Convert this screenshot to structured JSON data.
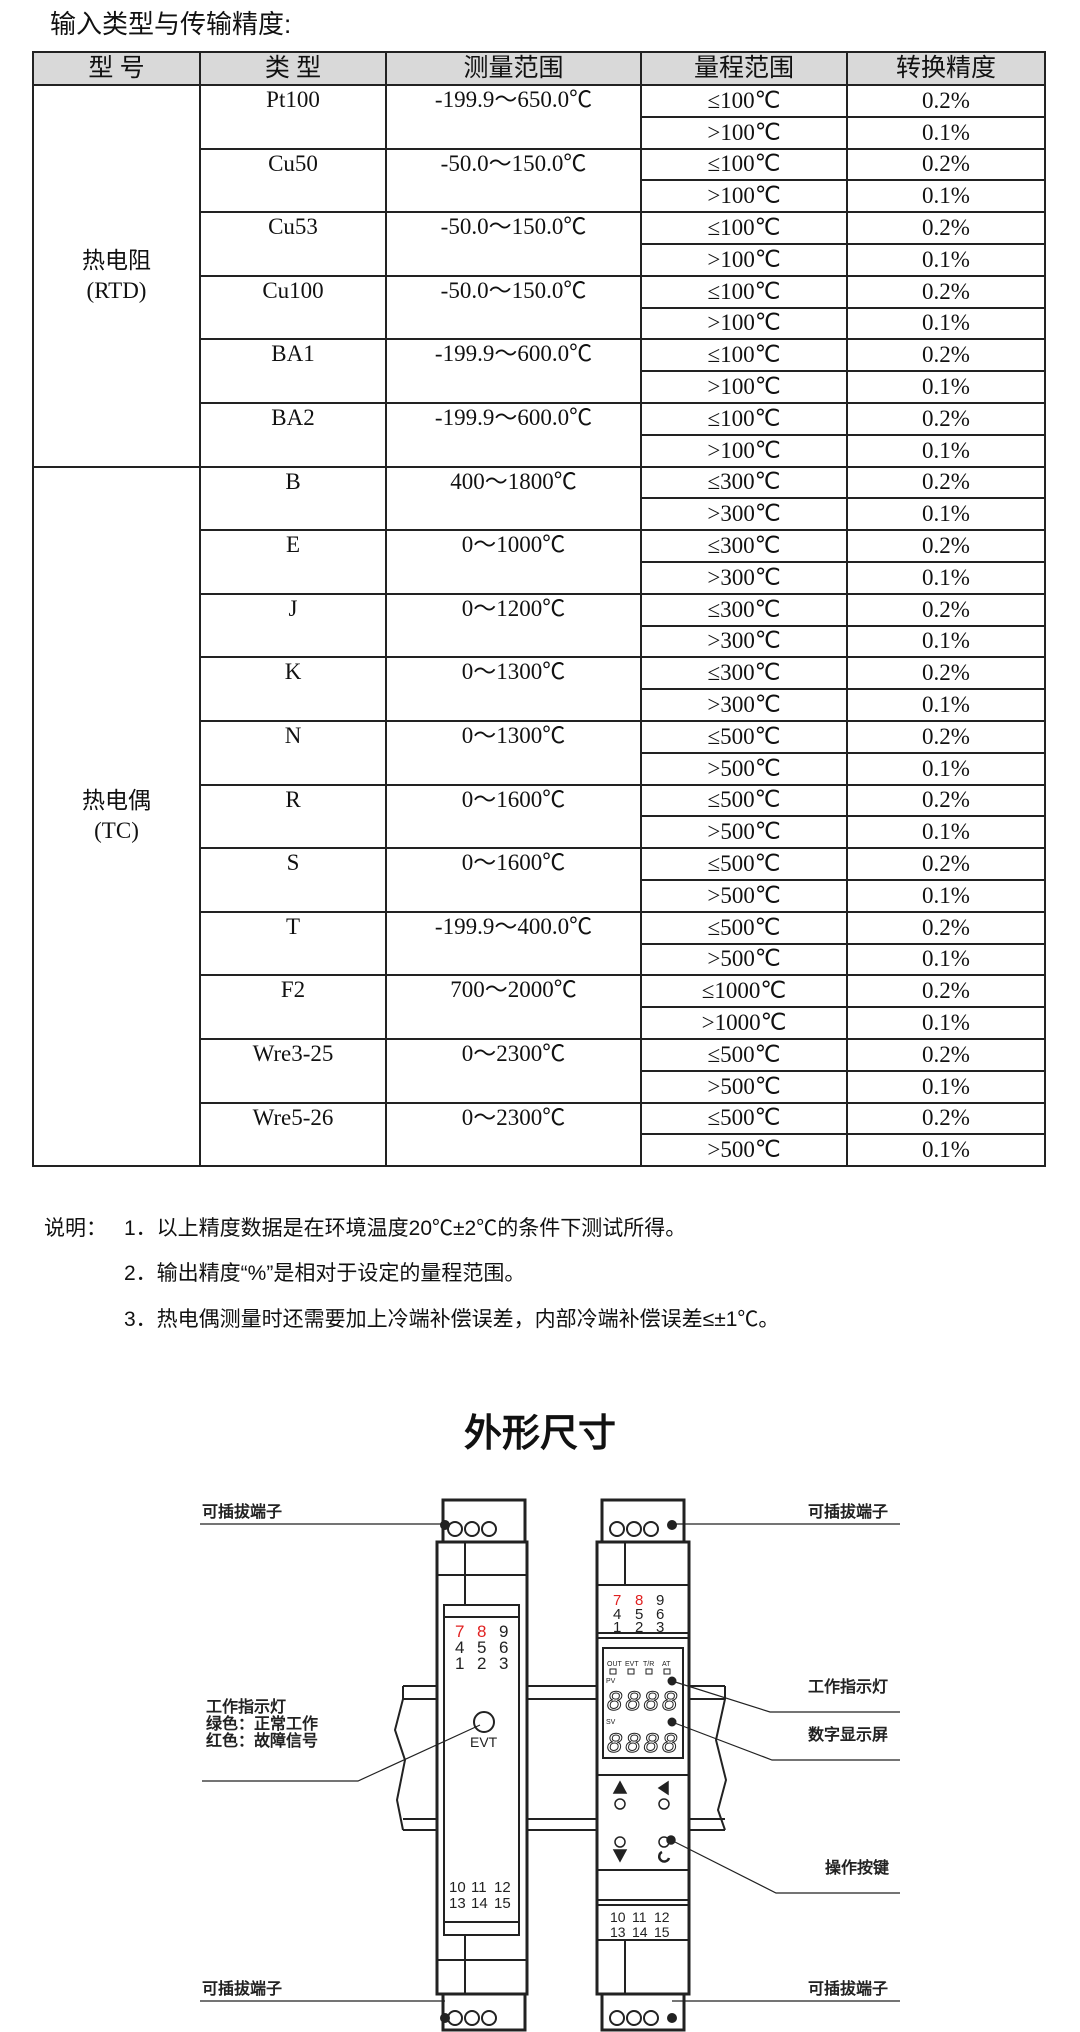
{
  "section_title": "输入类型与传输精度:",
  "table": {
    "headers": [
      "型 号",
      "类 型",
      "测量范围",
      "量程范围",
      "转换精度"
    ],
    "categories": [
      {
        "label": "热电阻",
        "sub": "(RTD)",
        "types": [
          {
            "type": "Pt100",
            "range": "-199.9～650.0℃",
            "spans": [
              "≤100℃",
              ">100℃"
            ],
            "acc": [
              "0.2%",
              "0.1%"
            ]
          },
          {
            "type": "Cu50",
            "range": "-50.0～150.0℃",
            "spans": [
              "≤100℃",
              ">100℃"
            ],
            "acc": [
              "0.2%",
              "0.1%"
            ]
          },
          {
            "type": "Cu53",
            "range": "-50.0～150.0℃",
            "spans": [
              "≤100℃",
              ">100℃"
            ],
            "acc": [
              "0.2%",
              "0.1%"
            ]
          },
          {
            "type": "Cu100",
            "range": "-50.0～150.0℃",
            "spans": [
              "≤100℃",
              ">100℃"
            ],
            "acc": [
              "0.2%",
              "0.1%"
            ]
          },
          {
            "type": "BA1",
            "range": "-199.9～600.0℃",
            "spans": [
              "≤100℃",
              ">100℃"
            ],
            "acc": [
              "0.2%",
              "0.1%"
            ]
          },
          {
            "type": "BA2",
            "range": "-199.9～600.0℃",
            "spans": [
              "≤100℃",
              ">100℃"
            ],
            "acc": [
              "0.2%",
              "0.1%"
            ]
          }
        ]
      },
      {
        "label": "热电偶",
        "sub": "(TC)",
        "types": [
          {
            "type": "B",
            "range": "400～1800℃",
            "spans": [
              "≤300℃",
              ">300℃"
            ],
            "acc": [
              "0.2%",
              "0.1%"
            ]
          },
          {
            "type": "E",
            "range": "0～1000℃",
            "spans": [
              "≤300℃",
              ">300℃"
            ],
            "acc": [
              "0.2%",
              "0.1%"
            ]
          },
          {
            "type": "J",
            "range": "0～1200℃",
            "spans": [
              "≤300℃",
              ">300℃"
            ],
            "acc": [
              "0.2%",
              "0.1%"
            ]
          },
          {
            "type": "K",
            "range": "0～1300℃",
            "spans": [
              "≤300℃",
              ">300℃"
            ],
            "acc": [
              "0.2%",
              "0.1%"
            ]
          },
          {
            "type": "N",
            "range": "0～1300℃",
            "spans": [
              "≤500℃",
              ">500℃"
            ],
            "acc": [
              "0.2%",
              "0.1%"
            ]
          },
          {
            "type": "R",
            "range": "0～1600℃",
            "spans": [
              "≤500℃",
              ">500℃"
            ],
            "acc": [
              "0.2%",
              "0.1%"
            ]
          },
          {
            "type": "S",
            "range": "0～1600℃",
            "spans": [
              "≤500℃",
              ">500℃"
            ],
            "acc": [
              "0.2%",
              "0.1%"
            ]
          },
          {
            "type": "T",
            "range": "-199.9～400.0℃",
            "spans": [
              "≤500℃",
              ">500℃"
            ],
            "acc": [
              "0.2%",
              "0.1%"
            ]
          },
          {
            "type": "F2",
            "range": "700～2000℃",
            "spans": [
              "≤1000℃",
              ">1000℃"
            ],
            "acc": [
              "0.2%",
              "0.1%"
            ]
          },
          {
            "type": "Wre3-25",
            "range": "0～2300℃",
            "spans": [
              "≤500℃",
              ">500℃"
            ],
            "acc": [
              "0.2%",
              "0.1%"
            ]
          },
          {
            "type": "Wre5-26",
            "range": "0～2300℃",
            "spans": [
              "≤500℃",
              ">500℃"
            ],
            "acc": [
              "0.2%",
              "0.1%"
            ]
          }
        ]
      }
    ]
  },
  "notes": {
    "prefix": "说明：",
    "items": [
      "1．以上精度数据是在环境温度20℃±2℃的条件下测试所得。",
      "2．输出精度“%”是相对于设定的量程范围。",
      "3．热电偶测量时还需要加上冷端补偿误差，内部冷端补偿误差≤±1℃。"
    ]
  },
  "diagram": {
    "title": "外形尺寸",
    "label_terminal": "可插拔端子",
    "label_indicator": "工作指示灯",
    "label_green": "绿色：正常工作",
    "label_red": "红色：故障信号",
    "label_display": "数字显示屏",
    "label_keys": "操作按键",
    "evt": "EVT",
    "terminals_top": [
      [
        "7",
        "8",
        "9"
      ],
      [
        "4",
        "5",
        "6"
      ],
      [
        "1",
        "2",
        "3"
      ]
    ],
    "terminals_bottom": [
      [
        "10",
        "11",
        "12"
      ],
      [
        "13",
        "14",
        "15"
      ]
    ],
    "led_labels": [
      "OUT",
      "EVT",
      "T/R",
      "AT"
    ],
    "pv": "PV",
    "sv": "SV",
    "digits": "8888",
    "highlight_color": "#e02020"
  }
}
